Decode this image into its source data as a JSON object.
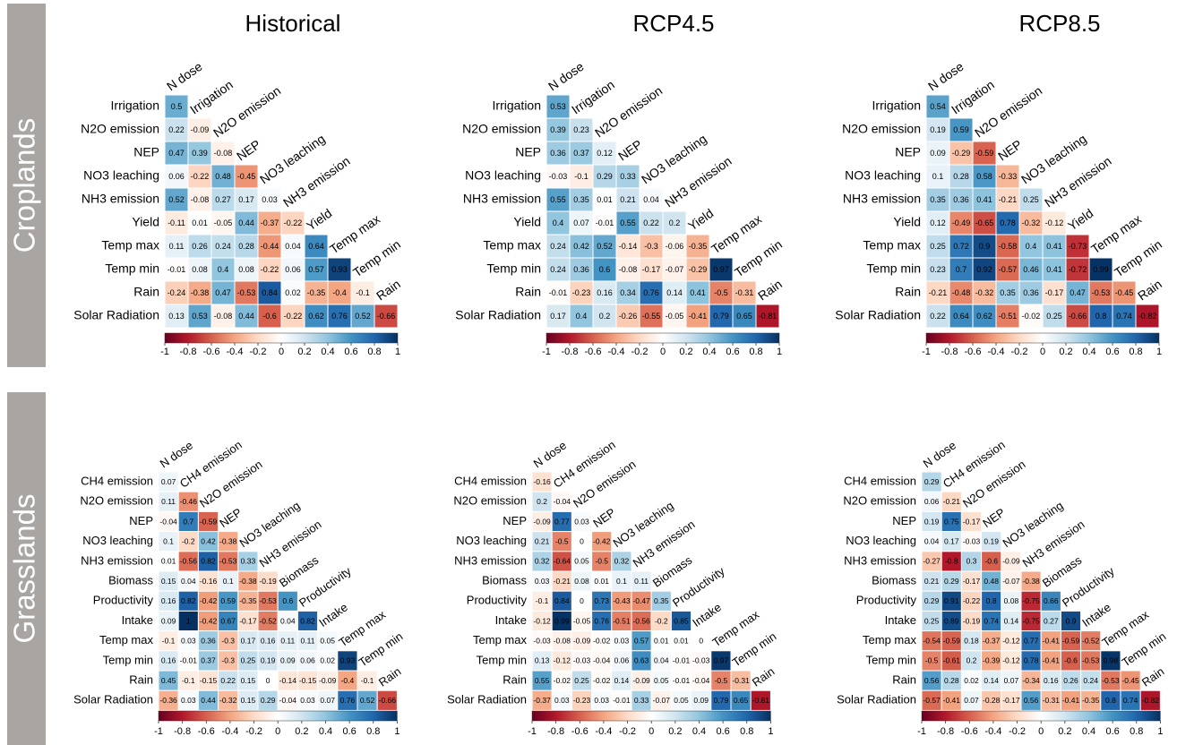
{
  "groups": [
    "Croplands",
    "Grasslands"
  ],
  "chart_data": [
    {
      "type": "heatmap",
      "title": "Historical",
      "rows": [
        "Irrigation",
        "N2O emission",
        "NEP",
        "NO3 leaching",
        "NH3 emission",
        "Yield",
        "Temp max",
        "Temp min",
        "Rain",
        "Solar Radiation"
      ],
      "columns": [
        "N dose",
        "Irrigation",
        "N2O emission",
        "NEP",
        "NO3 leaching",
        "NH3 emission",
        "Yield",
        "Temp max",
        "Temp min",
        "Rain"
      ],
      "values": [
        [
          0.5
        ],
        [
          0.22,
          -0.09
        ],
        [
          0.47,
          0.39,
          -0.08
        ],
        [
          0.06,
          -0.22,
          0.48,
          -0.45
        ],
        [
          0.52,
          -0.08,
          0.27,
          0.17,
          0.03
        ],
        [
          -0.11,
          0.01,
          -0.05,
          0.44,
          -0.37,
          -0.22
        ],
        [
          0.11,
          0.26,
          0.24,
          0.28,
          -0.44,
          0.04,
          0.64
        ],
        [
          -0.01,
          0.08,
          0.4,
          0.08,
          -0.22,
          0.06,
          0.57,
          0.93
        ],
        [
          -0.24,
          -0.38,
          0.47,
          -0.53,
          0.84,
          0.02,
          -0.35,
          -0.4,
          -0.1
        ],
        [
          0.13,
          0.53,
          -0.08,
          0.44,
          -0.6,
          -0.22,
          0.62,
          0.76,
          0.52,
          -0.66
        ]
      ],
      "clim": [
        -1,
        1
      ],
      "colorbar_ticks": [
        -1,
        -0.8,
        -0.6,
        -0.4,
        -0.2,
        0,
        0.2,
        0.4,
        0.6,
        0.8,
        1
      ],
      "colormap": [
        "#67001f",
        "#b2182b",
        "#d6604d",
        "#f4a582",
        "#fddbc7",
        "#ffffff",
        "#d1e5f0",
        "#92c5de",
        "#4393c3",
        "#2166ac",
        "#053061"
      ]
    },
    {
      "type": "heatmap",
      "title": "RCP4.5",
      "rows": [
        "Irrigation",
        "N2O emission",
        "NEP",
        "NO3 leaching",
        "NH3 emission",
        "Yield",
        "Temp max",
        "Temp min",
        "Rain",
        "Solar Radiation"
      ],
      "columns": [
        "N dose",
        "Irrigation",
        "N2O emission",
        "NEP",
        "NO3 leaching",
        "NH3 emission",
        "Yield",
        "Temp max",
        "Temp min",
        "Rain"
      ],
      "values": [
        [
          0.53
        ],
        [
          0.39,
          0.23
        ],
        [
          0.36,
          0.37,
          0.12
        ],
        [
          -0.03,
          -0.1,
          0.29,
          0.33
        ],
        [
          0.55,
          0.35,
          0.01,
          0.21,
          0.04
        ],
        [
          0.4,
          0.07,
          -0.01,
          0.55,
          0.22,
          0.2
        ],
        [
          0.24,
          0.42,
          0.52,
          -0.14,
          -0.3,
          -0.06,
          -0.35
        ],
        [
          0.24,
          0.36,
          0.6,
          -0.08,
          -0.17,
          -0.07,
          -0.29,
          0.97
        ],
        [
          -0.01,
          -0.23,
          0.16,
          0.34,
          0.76,
          0.14,
          0.41,
          -0.5,
          -0.31
        ],
        [
          0.17,
          0.4,
          0.2,
          -0.26,
          -0.55,
          -0.05,
          -0.41,
          0.79,
          0.65,
          -0.81
        ]
      ],
      "clim": [
        -1,
        1
      ],
      "colorbar_ticks": [
        -1,
        -0.8,
        -0.6,
        -0.4,
        -0.2,
        0,
        0.2,
        0.4,
        0.6,
        0.8,
        1
      ],
      "colormap": [
        "#67001f",
        "#b2182b",
        "#d6604d",
        "#f4a582",
        "#fddbc7",
        "#ffffff",
        "#d1e5f0",
        "#92c5de",
        "#4393c3",
        "#2166ac",
        "#053061"
      ]
    },
    {
      "type": "heatmap",
      "title": "RCP8.5",
      "rows": [
        "Irrigation",
        "N2O emission",
        "NEP",
        "NO3 leaching",
        "NH3 emission",
        "Yield",
        "Temp max",
        "Temp min",
        "Rain",
        "Solar Radiation"
      ],
      "columns": [
        "N dose",
        "Irrigation",
        "N2O emission",
        "NEP",
        "NO3 leaching",
        "NH3 emission",
        "Yield",
        "Temp max",
        "Temp min",
        "Rain"
      ],
      "values": [
        [
          0.54
        ],
        [
          0.19,
          0.59
        ],
        [
          0.09,
          -0.29,
          -0.59
        ],
        [
          0.1,
          0.28,
          0.58,
          -0.33
        ],
        [
          0.35,
          0.36,
          0.41,
          -0.21,
          0.25
        ],
        [
          0.12,
          -0.49,
          -0.65,
          0.78,
          -0.32,
          -0.12
        ],
        [
          0.25,
          0.72,
          0.9,
          -0.58,
          0.4,
          0.41,
          -0.73
        ],
        [
          0.23,
          0.7,
          0.92,
          -0.57,
          0.46,
          0.41,
          -0.72,
          0.99
        ],
        [
          -0.21,
          -0.48,
          -0.32,
          0.35,
          0.36,
          -0.17,
          0.47,
          -0.53,
          -0.45
        ],
        [
          0.22,
          0.64,
          0.62,
          -0.51,
          -0.02,
          0.25,
          -0.66,
          0.8,
          0.74,
          -0.82
        ]
      ],
      "clim": [
        -1,
        1
      ],
      "colorbar_ticks": [
        -1,
        -0.8,
        -0.6,
        -0.4,
        -0.2,
        0,
        0.2,
        0.4,
        0.6,
        0.8,
        1
      ],
      "colormap": [
        "#67001f",
        "#b2182b",
        "#d6604d",
        "#f4a582",
        "#fddbc7",
        "#ffffff",
        "#d1e5f0",
        "#92c5de",
        "#4393c3",
        "#2166ac",
        "#053061"
      ]
    },
    {
      "type": "heatmap",
      "rows": [
        "CH4 emission",
        "N2O emission",
        "NEP",
        "NO3 leaching",
        "NH3 emission",
        "Biomass",
        "Productivity",
        "Intake",
        "Temp max",
        "Temp min",
        "Rain",
        "Solar Radiation"
      ],
      "columns": [
        "N dose",
        "CH4 emission",
        "N2O emission",
        "NEP",
        "NO3 leaching",
        "NH3 emission",
        "Biomass",
        "Productivity",
        "Intake",
        "Temp max",
        "Temp min",
        "Rain"
      ],
      "values": [
        [
          0.07
        ],
        [
          0.11,
          -0.46
        ],
        [
          -0.04,
          0.7,
          -0.59
        ],
        [
          0.1,
          -0.2,
          0.42,
          -0.38
        ],
        [
          0.01,
          -0.56,
          0.82,
          -0.53,
          0.33
        ],
        [
          0.15,
          0.04,
          -0.16,
          0.1,
          -0.38,
          -0.19
        ],
        [
          0.16,
          0.82,
          -0.42,
          0.59,
          -0.35,
          -0.53,
          0.6
        ],
        [
          0.09,
          1,
          -0.42,
          0.67,
          -0.17,
          -0.52,
          0.04,
          0.82
        ],
        [
          -0.1,
          0.03,
          0.36,
          -0.3,
          0.17,
          0.16,
          0.11,
          0.11,
          0.05
        ],
        [
          0.16,
          -0.01,
          0.37,
          -0.3,
          0.25,
          0.19,
          0.09,
          0.06,
          0.02,
          0.93
        ],
        [
          0.45,
          -0.1,
          -0.15,
          0.22,
          0.15,
          0,
          -0.14,
          -0.15,
          -0.09,
          -0.4,
          -0.1
        ],
        [
          -0.36,
          0.03,
          0.44,
          -0.32,
          0.15,
          0.29,
          -0.04,
          0.03,
          0.07,
          0.76,
          0.52,
          -0.66
        ]
      ],
      "clim": [
        -1,
        1
      ],
      "colorbar_ticks": [
        -1,
        -0.8,
        -0.6,
        -0.4,
        -0.2,
        0,
        0.2,
        0.4,
        0.6,
        0.8,
        1
      ],
      "colormap": [
        "#67001f",
        "#b2182b",
        "#d6604d",
        "#f4a582",
        "#fddbc7",
        "#ffffff",
        "#d1e5f0",
        "#92c5de",
        "#4393c3",
        "#2166ac",
        "#053061"
      ]
    },
    {
      "type": "heatmap",
      "rows": [
        "CH4 emission",
        "N2O emission",
        "NEP",
        "NO3 leaching",
        "NH3 emission",
        "Biomass",
        "Productivity",
        "Intake",
        "Temp max",
        "Temp min",
        "Rain",
        "Solar Radiation"
      ],
      "columns": [
        "N dose",
        "CH4 emission",
        "N2O emission",
        "NEP",
        "NO3 leaching",
        "NH3 emission",
        "Biomass",
        "Productivity",
        "Intake",
        "Temp max",
        "Temp min",
        "Rain"
      ],
      "values": [
        [
          -0.16
        ],
        [
          0.2,
          -0.04
        ],
        [
          -0.09,
          0.77,
          0.03
        ],
        [
          0.21,
          -0.5,
          0,
          -0.42
        ],
        [
          0.32,
          -0.64,
          0.05,
          -0.5,
          0.32
        ],
        [
          0.03,
          -0.21,
          0.08,
          0.01,
          0.1,
          0.11
        ],
        [
          -0.1,
          0.84,
          0,
          0.73,
          -0.43,
          -0.47,
          0.35
        ],
        [
          -0.12,
          0.99,
          -0.05,
          0.76,
          -0.51,
          -0.56,
          -0.2,
          0.85
        ],
        [
          -0.03,
          -0.08,
          -0.09,
          -0.02,
          0.03,
          0.57,
          0.01,
          0.01,
          0
        ],
        [
          0.13,
          -0.12,
          -0.03,
          -0.04,
          0.06,
          0.63,
          0.04,
          -0.01,
          -0.03,
          0.97
        ],
        [
          0.55,
          -0.02,
          0.25,
          -0.02,
          0.14,
          -0.09,
          0.05,
          -0.01,
          -0.04,
          -0.5,
          -0.31
        ],
        [
          -0.37,
          0.03,
          -0.23,
          0.03,
          -0.01,
          0.33,
          -0.07,
          0.05,
          0.09,
          0.79,
          0.65,
          -0.81
        ]
      ],
      "clim": [
        -1,
        1
      ],
      "colorbar_ticks": [
        -1,
        -0.8,
        -0.6,
        -0.4,
        -0.2,
        0,
        0.2,
        0.4,
        0.6,
        0.8,
        1
      ],
      "colormap": [
        "#67001f",
        "#b2182b",
        "#d6604d",
        "#f4a582",
        "#fddbc7",
        "#ffffff",
        "#d1e5f0",
        "#92c5de",
        "#4393c3",
        "#2166ac",
        "#053061"
      ]
    },
    {
      "type": "heatmap",
      "rows": [
        "CH4 emission",
        "N2O emission",
        "NEP",
        "NO3 leaching",
        "NH3 emission",
        "Biomass",
        "Productivity",
        "Intake",
        "Temp max",
        "Temp min",
        "Rain",
        "Solar Radiation"
      ],
      "columns": [
        "N dose",
        "CH4 emission",
        "N2O emission",
        "NEP",
        "NO3 leaching",
        "NH3 emission",
        "Biomass",
        "Productivity",
        "Intake",
        "Temp max",
        "Temp min",
        "Rain"
      ],
      "values": [
        [
          0.29
        ],
        [
          0.06,
          -0.21
        ],
        [
          0.19,
          0.75,
          -0.17
        ],
        [
          0.04,
          0.17,
          -0.03,
          0.19
        ],
        [
          -0.27,
          -0.8,
          0.3,
          -0.6,
          -0.09
        ],
        [
          0.21,
          0.29,
          -0.17,
          0.48,
          -0.07,
          -0.38
        ],
        [
          0.29,
          0.91,
          -0.22,
          0.8,
          0.08,
          -0.75,
          0.66
        ],
        [
          0.25,
          0.89,
          -0.19,
          0.74,
          0.14,
          -0.75,
          0.27,
          0.9
        ],
        [
          -0.54,
          -0.59,
          0.18,
          -0.37,
          -0.12,
          0.77,
          -0.41,
          -0.59,
          -0.52
        ],
        [
          -0.5,
          -0.61,
          0.2,
          -0.39,
          -0.12,
          0.78,
          -0.41,
          -0.6,
          -0.53,
          0.98
        ],
        [
          0.56,
          0.28,
          0.02,
          0.14,
          0.07,
          -0.34,
          0.16,
          0.26,
          0.24,
          -0.53,
          -0.45
        ],
        [
          -0.57,
          -0.41,
          0.07,
          -0.28,
          -0.17,
          0.56,
          -0.31,
          -0.41,
          -0.35,
          0.8,
          0.74,
          -0.82
        ]
      ],
      "clim": [
        -1,
        1
      ],
      "colorbar_ticks": [
        -1,
        -0.8,
        -0.6,
        -0.4,
        -0.2,
        0,
        0.2,
        0.4,
        0.6,
        0.8,
        1
      ],
      "colormap": [
        "#67001f",
        "#b2182b",
        "#d6604d",
        "#f4a582",
        "#fddbc7",
        "#ffffff",
        "#d1e5f0",
        "#92c5de",
        "#4393c3",
        "#2166ac",
        "#053061"
      ]
    }
  ]
}
